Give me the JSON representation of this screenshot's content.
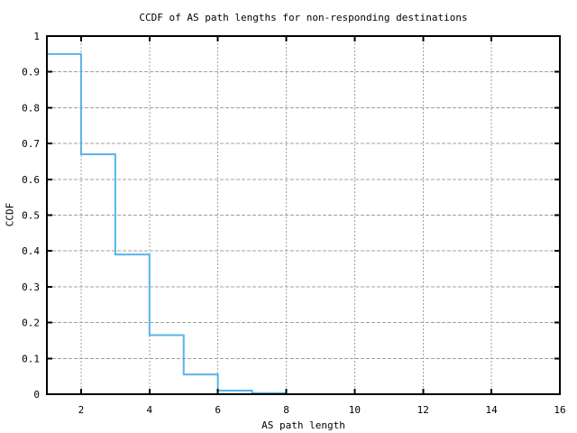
{
  "chart_data": {
    "type": "line",
    "subtype": "step-post",
    "title": "CCDF of AS path lengths for non-responding destinations",
    "xlabel": "AS path length",
    "ylabel": "CCDF",
    "xlim": [
      1,
      16
    ],
    "ylim": [
      0,
      1
    ],
    "grid": true,
    "legend_position": "none",
    "xtick_values": [
      2,
      4,
      6,
      8,
      10,
      12,
      14,
      16
    ],
    "xtick_labels": [
      "2",
      "4",
      "6",
      "8",
      "10",
      "12",
      "14",
      "16"
    ],
    "ytick_values": [
      0,
      0.1,
      0.2,
      0.3,
      0.4,
      0.5,
      0.6,
      0.7,
      0.8,
      0.9,
      1
    ],
    "ytick_labels": [
      "0",
      "0.1",
      "0.2",
      "0.3",
      "0.4",
      "0.5",
      "0.6",
      "0.7",
      "0.8",
      "0.9",
      "1"
    ],
    "series": [
      {
        "name": "ccdf",
        "color": "#56b4e9",
        "step": "post",
        "x": [
          1,
          2,
          3,
          4,
          5,
          6,
          7,
          8
        ],
        "y": [
          0.95,
          0.67,
          0.39,
          0.165,
          0.055,
          0.01,
          0.003,
          0
        ]
      }
    ],
    "colors": {
      "background": "#ffffff",
      "axis": "#000000",
      "grid": "#a0a0a0",
      "text": "#000000"
    }
  }
}
